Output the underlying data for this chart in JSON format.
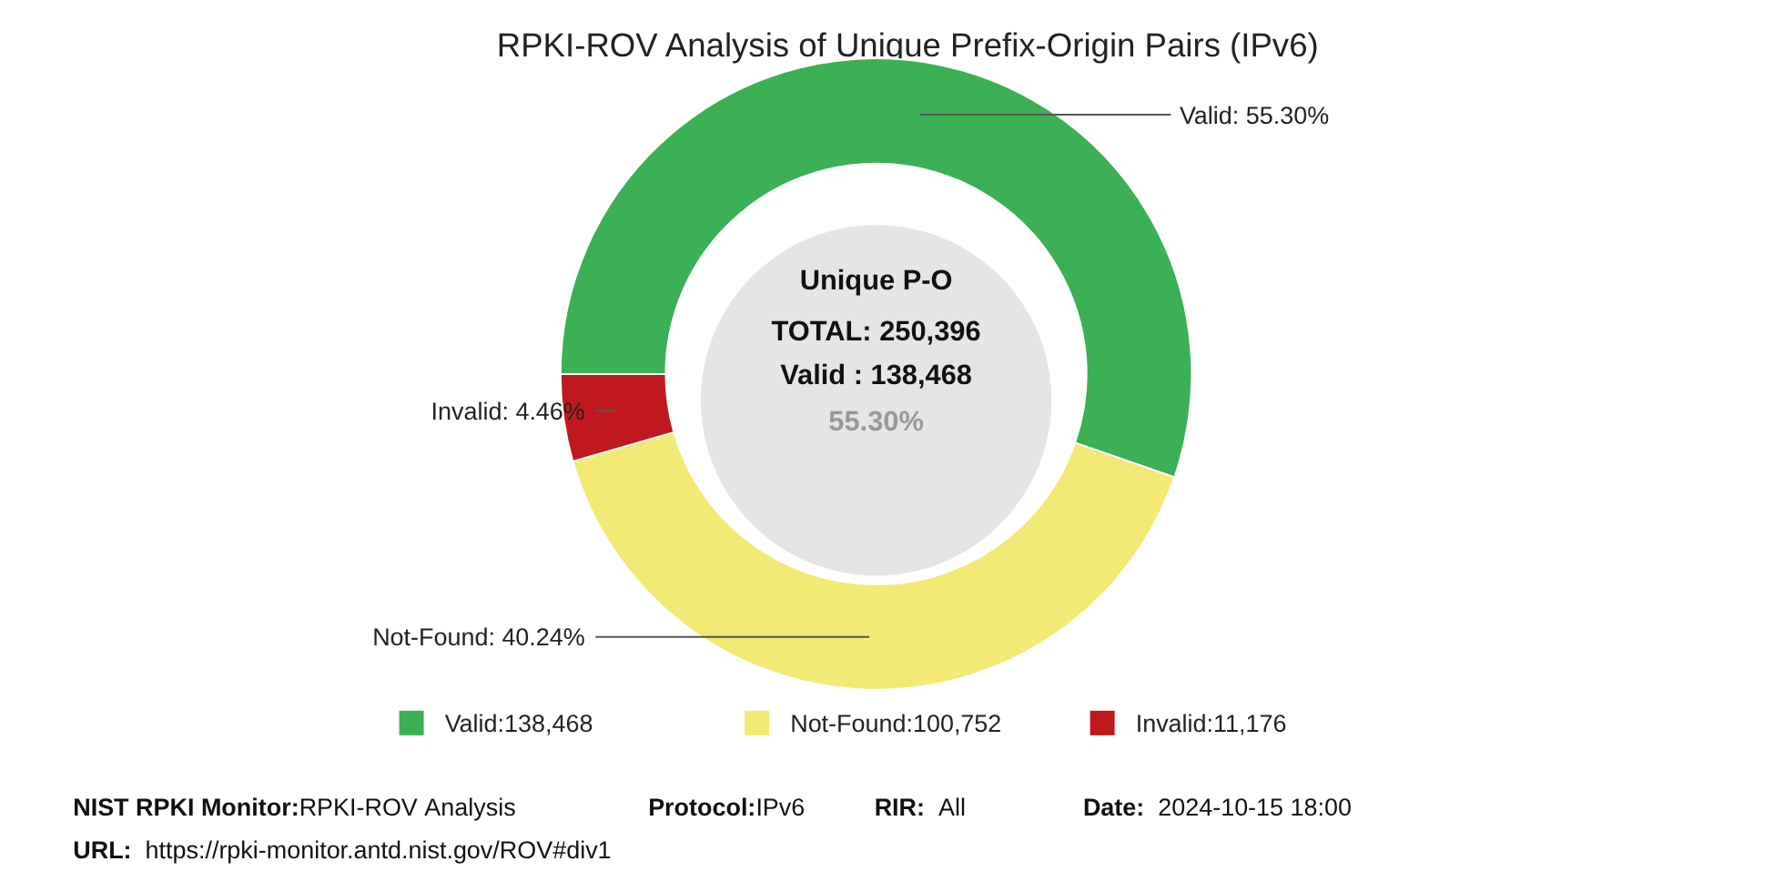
{
  "chart_data": {
    "type": "donut",
    "title": "RPKI-ROV Analysis of Unique Prefix-Origin Pairs (IPv6)",
    "categories": [
      "Valid:138,468",
      "Not-Found:100,752",
      "Invalid:11,176"
    ],
    "values": [
      55.3,
      40.24,
      4.46
    ],
    "colors": [
      "#3cb054",
      "#f2ea74",
      "#c0191d"
    ],
    "value_labels": [
      "Valid: 55.30%",
      "Not-Found: 40.24%",
      "Invalid: 4.46%"
    ],
    "legend": "bottom",
    "annotations": [
      "Unique P-O",
      "TOTAL: 250,396",
      "Valid : 138,468",
      "55.30%",
      "NIST RPKI Monitor:RPKI-ROV Analysis",
      "Protocol:IPv6",
      "RIR:  All",
      "Date:  2024-10-15 18:00",
      "URL:  https://rpki-monitor.antd.nist.gov/ROV#div1"
    ]
  }
}
